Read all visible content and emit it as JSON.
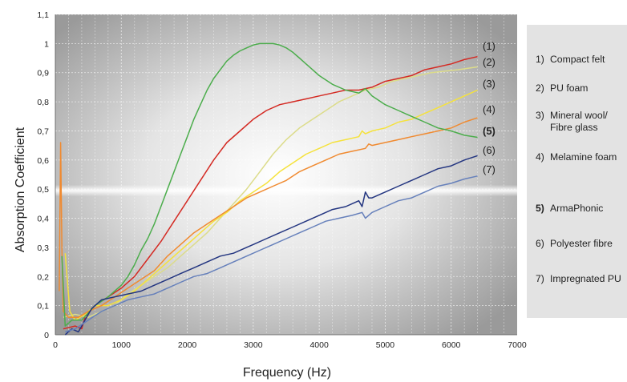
{
  "chart_data": {
    "type": "line",
    "title": "",
    "xlabel": "Frequency (Hz)",
    "ylabel": "Absorption Coefficient",
    "xlim": [
      0,
      7000
    ],
    "ylim": [
      0,
      1.1
    ],
    "x_ticks": [
      "0",
      "1000",
      "2000",
      "3000",
      "4000",
      "5000",
      "6000",
      "7000"
    ],
    "y_ticks": [
      "0",
      "0,1",
      "0,2",
      "0,3",
      "0,4",
      "0,5",
      "0,6",
      "0,7",
      "0,8",
      "0,9",
      "1",
      "1,1"
    ],
    "grid": true,
    "legend_position": "right",
    "series": [
      {
        "end_label": "(1)",
        "color": "#d42a23",
        "points": [
          [
            120,
            0.02
          ],
          [
            300,
            0.03
          ],
          [
            400,
            0.02
          ],
          [
            450,
            0.06
          ],
          [
            600,
            0.1
          ],
          [
            800,
            0.13
          ],
          [
            1000,
            0.16
          ],
          [
            1200,
            0.2
          ],
          [
            1400,
            0.26
          ],
          [
            1600,
            0.32
          ],
          [
            1800,
            0.39
          ],
          [
            2000,
            0.46
          ],
          [
            2200,
            0.53
          ],
          [
            2400,
            0.6
          ],
          [
            2600,
            0.66
          ],
          [
            2800,
            0.7
          ],
          [
            3000,
            0.74
          ],
          [
            3200,
            0.77
          ],
          [
            3400,
            0.79
          ],
          [
            3600,
            0.8
          ],
          [
            3800,
            0.81
          ],
          [
            4000,
            0.82
          ],
          [
            4200,
            0.83
          ],
          [
            4400,
            0.84
          ],
          [
            4600,
            0.84
          ],
          [
            4800,
            0.85
          ],
          [
            5000,
            0.87
          ],
          [
            5200,
            0.88
          ],
          [
            5400,
            0.89
          ],
          [
            5600,
            0.91
          ],
          [
            5800,
            0.92
          ],
          [
            6000,
            0.93
          ],
          [
            6200,
            0.945
          ],
          [
            6400,
            0.955
          ]
        ]
      },
      {
        "end_label": "(2)",
        "color": "#dcdc8a",
        "points": [
          [
            120,
            0.06
          ],
          [
            300,
            0.07
          ],
          [
            500,
            0.06
          ],
          [
            700,
            0.08
          ],
          [
            900,
            0.1
          ],
          [
            1100,
            0.14
          ],
          [
            1300,
            0.17
          ],
          [
            1500,
            0.2
          ],
          [
            1700,
            0.23
          ],
          [
            1900,
            0.27
          ],
          [
            2100,
            0.31
          ],
          [
            2300,
            0.35
          ],
          [
            2500,
            0.4
          ],
          [
            2700,
            0.45
          ],
          [
            2900,
            0.5
          ],
          [
            3100,
            0.56
          ],
          [
            3300,
            0.62
          ],
          [
            3500,
            0.67
          ],
          [
            3700,
            0.71
          ],
          [
            3900,
            0.74
          ],
          [
            4100,
            0.77
          ],
          [
            4300,
            0.8
          ],
          [
            4500,
            0.82
          ],
          [
            4700,
            0.84
          ],
          [
            4900,
            0.85
          ],
          [
            5100,
            0.87
          ],
          [
            5300,
            0.88
          ],
          [
            5500,
            0.89
          ],
          [
            5700,
            0.9
          ],
          [
            5900,
            0.905
          ],
          [
            6100,
            0.91
          ],
          [
            6400,
            0.92
          ]
        ]
      },
      {
        "end_label": "(3)",
        "color": "#f5e23c",
        "points": [
          [
            150,
            0.28
          ],
          [
            220,
            0.08
          ],
          [
            300,
            0.05
          ],
          [
            450,
            0.07
          ],
          [
            600,
            0.1
          ],
          [
            800,
            0.1
          ],
          [
            1000,
            0.12
          ],
          [
            1200,
            0.15
          ],
          [
            1400,
            0.19
          ],
          [
            1600,
            0.23
          ],
          [
            1800,
            0.27
          ],
          [
            2000,
            0.31
          ],
          [
            2200,
            0.35
          ],
          [
            2400,
            0.39
          ],
          [
            2600,
            0.42
          ],
          [
            2800,
            0.46
          ],
          [
            3000,
            0.49
          ],
          [
            3200,
            0.52
          ],
          [
            3400,
            0.56
          ],
          [
            3600,
            0.59
          ],
          [
            3800,
            0.62
          ],
          [
            4000,
            0.64
          ],
          [
            4200,
            0.66
          ],
          [
            4400,
            0.67
          ],
          [
            4600,
            0.68
          ],
          [
            4650,
            0.7
          ],
          [
            4700,
            0.69
          ],
          [
            4800,
            0.7
          ],
          [
            5000,
            0.71
          ],
          [
            5200,
            0.73
          ],
          [
            5400,
            0.74
          ],
          [
            5600,
            0.76
          ],
          [
            5800,
            0.78
          ],
          [
            6000,
            0.8
          ],
          [
            6200,
            0.82
          ],
          [
            6400,
            0.84
          ]
        ]
      },
      {
        "end_label": "(4)",
        "color": "#f08a30",
        "points": [
          [
            60,
            0.15
          ],
          [
            80,
            0.66
          ],
          [
            100,
            0.3
          ],
          [
            120,
            0.08
          ],
          [
            200,
            0.06
          ],
          [
            350,
            0.06
          ],
          [
            500,
            0.08
          ],
          [
            700,
            0.1
          ],
          [
            900,
            0.13
          ],
          [
            1100,
            0.16
          ],
          [
            1300,
            0.19
          ],
          [
            1500,
            0.22
          ],
          [
            1700,
            0.27
          ],
          [
            1900,
            0.31
          ],
          [
            2100,
            0.35
          ],
          [
            2300,
            0.38
          ],
          [
            2500,
            0.41
          ],
          [
            2700,
            0.44
          ],
          [
            2900,
            0.47
          ],
          [
            3100,
            0.49
          ],
          [
            3300,
            0.51
          ],
          [
            3500,
            0.53
          ],
          [
            3700,
            0.56
          ],
          [
            3900,
            0.58
          ],
          [
            4100,
            0.6
          ],
          [
            4300,
            0.62
          ],
          [
            4500,
            0.63
          ],
          [
            4700,
            0.64
          ],
          [
            4750,
            0.655
          ],
          [
            4800,
            0.65
          ],
          [
            5000,
            0.66
          ],
          [
            5200,
            0.67
          ],
          [
            5400,
            0.68
          ],
          [
            5600,
            0.69
          ],
          [
            5800,
            0.7
          ],
          [
            6000,
            0.71
          ],
          [
            6200,
            0.73
          ],
          [
            6400,
            0.745
          ]
        ]
      },
      {
        "end_label": "(5)",
        "color": "#4cad4c",
        "bold": true,
        "points": [
          [
            100,
            0.27
          ],
          [
            150,
            0.03
          ],
          [
            250,
            0.05
          ],
          [
            400,
            0.05
          ],
          [
            600,
            0.1
          ],
          [
            800,
            0.13
          ],
          [
            1000,
            0.17
          ],
          [
            1100,
            0.2
          ],
          [
            1200,
            0.24
          ],
          [
            1300,
            0.29
          ],
          [
            1400,
            0.33
          ],
          [
            1500,
            0.38
          ],
          [
            1600,
            0.44
          ],
          [
            1700,
            0.5
          ],
          [
            1800,
            0.56
          ],
          [
            1900,
            0.62
          ],
          [
            2000,
            0.68
          ],
          [
            2100,
            0.74
          ],
          [
            2200,
            0.79
          ],
          [
            2300,
            0.84
          ],
          [
            2400,
            0.88
          ],
          [
            2500,
            0.91
          ],
          [
            2600,
            0.94
          ],
          [
            2700,
            0.96
          ],
          [
            2800,
            0.975
          ],
          [
            2900,
            0.985
          ],
          [
            3000,
            0.995
          ],
          [
            3100,
            1.0
          ],
          [
            3200,
            1.0
          ],
          [
            3300,
            1.0
          ],
          [
            3400,
            0.995
          ],
          [
            3500,
            0.985
          ],
          [
            3600,
            0.97
          ],
          [
            3700,
            0.95
          ],
          [
            3800,
            0.93
          ],
          [
            3900,
            0.91
          ],
          [
            4000,
            0.89
          ],
          [
            4200,
            0.86
          ],
          [
            4400,
            0.84
          ],
          [
            4600,
            0.83
          ],
          [
            4700,
            0.845
          ],
          [
            4800,
            0.82
          ],
          [
            5000,
            0.79
          ],
          [
            5200,
            0.77
          ],
          [
            5400,
            0.75
          ],
          [
            5600,
            0.73
          ],
          [
            5800,
            0.71
          ],
          [
            6000,
            0.7
          ],
          [
            6200,
            0.685
          ],
          [
            6400,
            0.678
          ]
        ]
      },
      {
        "end_label": "(6)",
        "color": "#233580",
        "points": [
          [
            150,
            0.0
          ],
          [
            250,
            0.02
          ],
          [
            350,
            0.01
          ],
          [
            450,
            0.05
          ],
          [
            550,
            0.09
          ],
          [
            700,
            0.12
          ],
          [
            900,
            0.13
          ],
          [
            1100,
            0.14
          ],
          [
            1300,
            0.15
          ],
          [
            1500,
            0.17
          ],
          [
            1700,
            0.19
          ],
          [
            1900,
            0.21
          ],
          [
            2100,
            0.23
          ],
          [
            2300,
            0.25
          ],
          [
            2500,
            0.27
          ],
          [
            2700,
            0.28
          ],
          [
            2900,
            0.3
          ],
          [
            3000,
            0.31
          ],
          [
            3200,
            0.33
          ],
          [
            3400,
            0.35
          ],
          [
            3600,
            0.37
          ],
          [
            3800,
            0.39
          ],
          [
            4000,
            0.41
          ],
          [
            4200,
            0.43
          ],
          [
            4400,
            0.44
          ],
          [
            4600,
            0.46
          ],
          [
            4650,
            0.44
          ],
          [
            4700,
            0.49
          ],
          [
            4750,
            0.47
          ],
          [
            4800,
            0.47
          ],
          [
            5000,
            0.49
          ],
          [
            5200,
            0.51
          ],
          [
            5400,
            0.53
          ],
          [
            5600,
            0.55
          ],
          [
            5800,
            0.57
          ],
          [
            6000,
            0.58
          ],
          [
            6200,
            0.6
          ],
          [
            6400,
            0.615
          ]
        ]
      },
      {
        "end_label": "(7)",
        "color": "#6680bb",
        "points": [
          [
            150,
            0.01
          ],
          [
            300,
            0.02
          ],
          [
            500,
            0.05
          ],
          [
            700,
            0.08
          ],
          [
            900,
            0.1
          ],
          [
            1100,
            0.12
          ],
          [
            1300,
            0.13
          ],
          [
            1500,
            0.14
          ],
          [
            1700,
            0.16
          ],
          [
            1900,
            0.18
          ],
          [
            2100,
            0.2
          ],
          [
            2300,
            0.21
          ],
          [
            2500,
            0.23
          ],
          [
            2700,
            0.25
          ],
          [
            2900,
            0.27
          ],
          [
            3100,
            0.29
          ],
          [
            3300,
            0.31
          ],
          [
            3500,
            0.33
          ],
          [
            3700,
            0.35
          ],
          [
            3900,
            0.37
          ],
          [
            4100,
            0.39
          ],
          [
            4300,
            0.4
          ],
          [
            4500,
            0.41
          ],
          [
            4650,
            0.42
          ],
          [
            4700,
            0.4
          ],
          [
            4800,
            0.42
          ],
          [
            5000,
            0.44
          ],
          [
            5200,
            0.46
          ],
          [
            5400,
            0.47
          ],
          [
            5600,
            0.49
          ],
          [
            5800,
            0.51
          ],
          [
            6000,
            0.52
          ],
          [
            6200,
            0.535
          ],
          [
            6400,
            0.545
          ]
        ]
      }
    ]
  },
  "legend": [
    {
      "num": "1)",
      "text": "Compact felt"
    },
    {
      "num": "2)",
      "text": "PU foam"
    },
    {
      "num": "3)",
      "text": "Mineral wool/ Fibre glass"
    },
    {
      "num": "4)",
      "text": "Melamine foam"
    },
    {
      "num": "5)",
      "text": "ArmaPhonic",
      "bold": true
    },
    {
      "num": "6)",
      "text": "Polyester fibre"
    },
    {
      "num": "7)",
      "text": "Impregnated PU"
    }
  ]
}
